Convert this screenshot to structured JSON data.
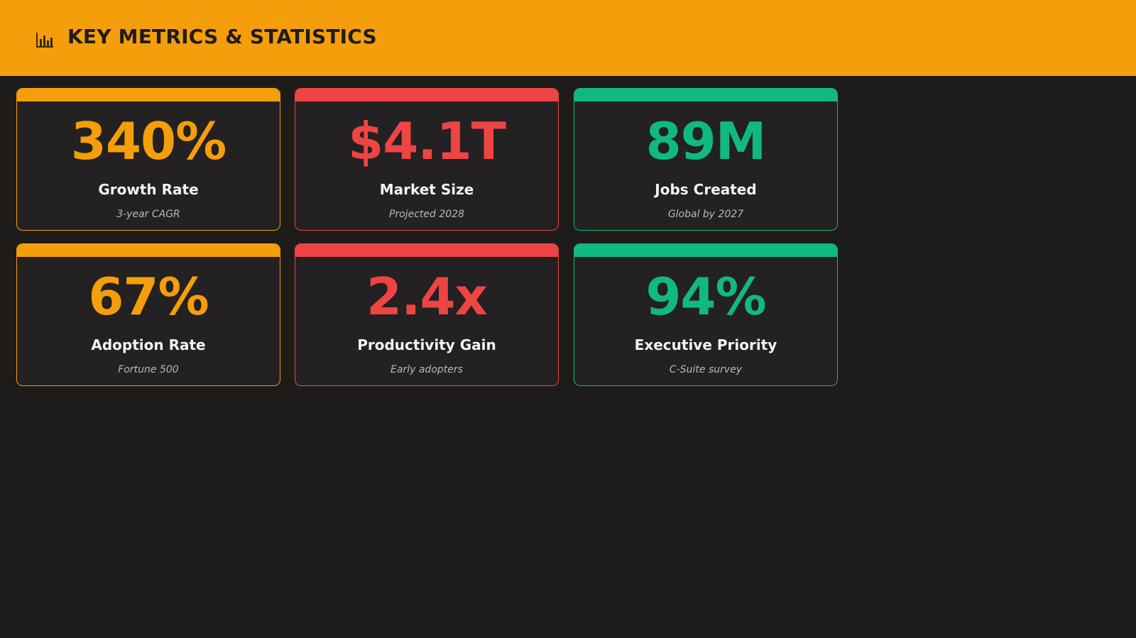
{
  "header": {
    "icon": "bar-chart-icon",
    "title": "KEY METRICS & STATISTICS",
    "background": "#f59e0b"
  },
  "colors": {
    "amber": "#f59e0b",
    "red": "#ef4444",
    "green": "#10b981"
  },
  "cards": [
    {
      "value": "340%",
      "label": "Growth Rate",
      "sub": "3-year CAGR",
      "color": "#f59e0b"
    },
    {
      "value": "$4.1T",
      "label": "Market Size",
      "sub": "Projected 2028",
      "color": "#ef4444"
    },
    {
      "value": "89M",
      "label": "Jobs Created",
      "sub": "Global by 2027",
      "color": "#10b981"
    },
    {
      "value": "67%",
      "label": "Adoption Rate",
      "sub": "Fortune 500",
      "color": "#f59e0b"
    },
    {
      "value": "2.4x",
      "label": "Productivity Gain",
      "sub": "Early adopters",
      "color": "#ef4444"
    },
    {
      "value": "94%",
      "label": "Executive Priority",
      "sub": "C-Suite survey",
      "color": "#10b981"
    }
  ]
}
